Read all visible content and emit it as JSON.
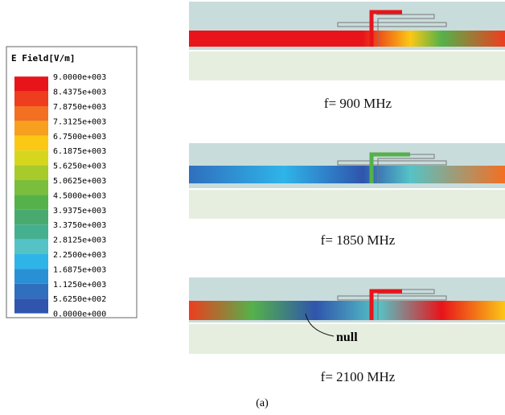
{
  "legend": {
    "title": "E Field[V/m]",
    "entries": [
      {
        "label": "9.0000e+003",
        "color": "#e8141a"
      },
      {
        "label": "8.4375e+003",
        "color": "#ee3d1f"
      },
      {
        "label": "7.8750e+003",
        "color": "#f36f21"
      },
      {
        "label": "7.3125e+003",
        "color": "#f79f1f"
      },
      {
        "label": "6.7500e+003",
        "color": "#fbc815"
      },
      {
        "label": "6.1875e+003",
        "color": "#d6d61f"
      },
      {
        "label": "5.6250e+003",
        "color": "#a6cb2b"
      },
      {
        "label": "5.0625e+003",
        "color": "#7bbd3c"
      },
      {
        "label": "4.5000e+003",
        "color": "#55b14a"
      },
      {
        "label": "3.9375e+003",
        "color": "#49aa70"
      },
      {
        "label": "3.3750e+003",
        "color": "#45b08f"
      },
      {
        "label": "2.8125e+003",
        "color": "#55c3c6"
      },
      {
        "label": "2.2500e+003",
        "color": "#2fb4e8"
      },
      {
        "label": "1.6875e+003",
        "color": "#2a90d6"
      },
      {
        "label": "1.1250e+003",
        "color": "#2f6fbe"
      },
      {
        "label": "5.6250e+002",
        "color": "#2f55ad"
      },
      {
        "label": "0.0000e+000",
        "color": "#2b3d9a"
      }
    ]
  },
  "panels": [
    {
      "caption": "f= 900 MHz"
    },
    {
      "caption": "f= 1850 MHz"
    },
    {
      "caption": "f= 2100 MHz",
      "annotation": "null"
    }
  ],
  "figure_label": "(a)"
}
